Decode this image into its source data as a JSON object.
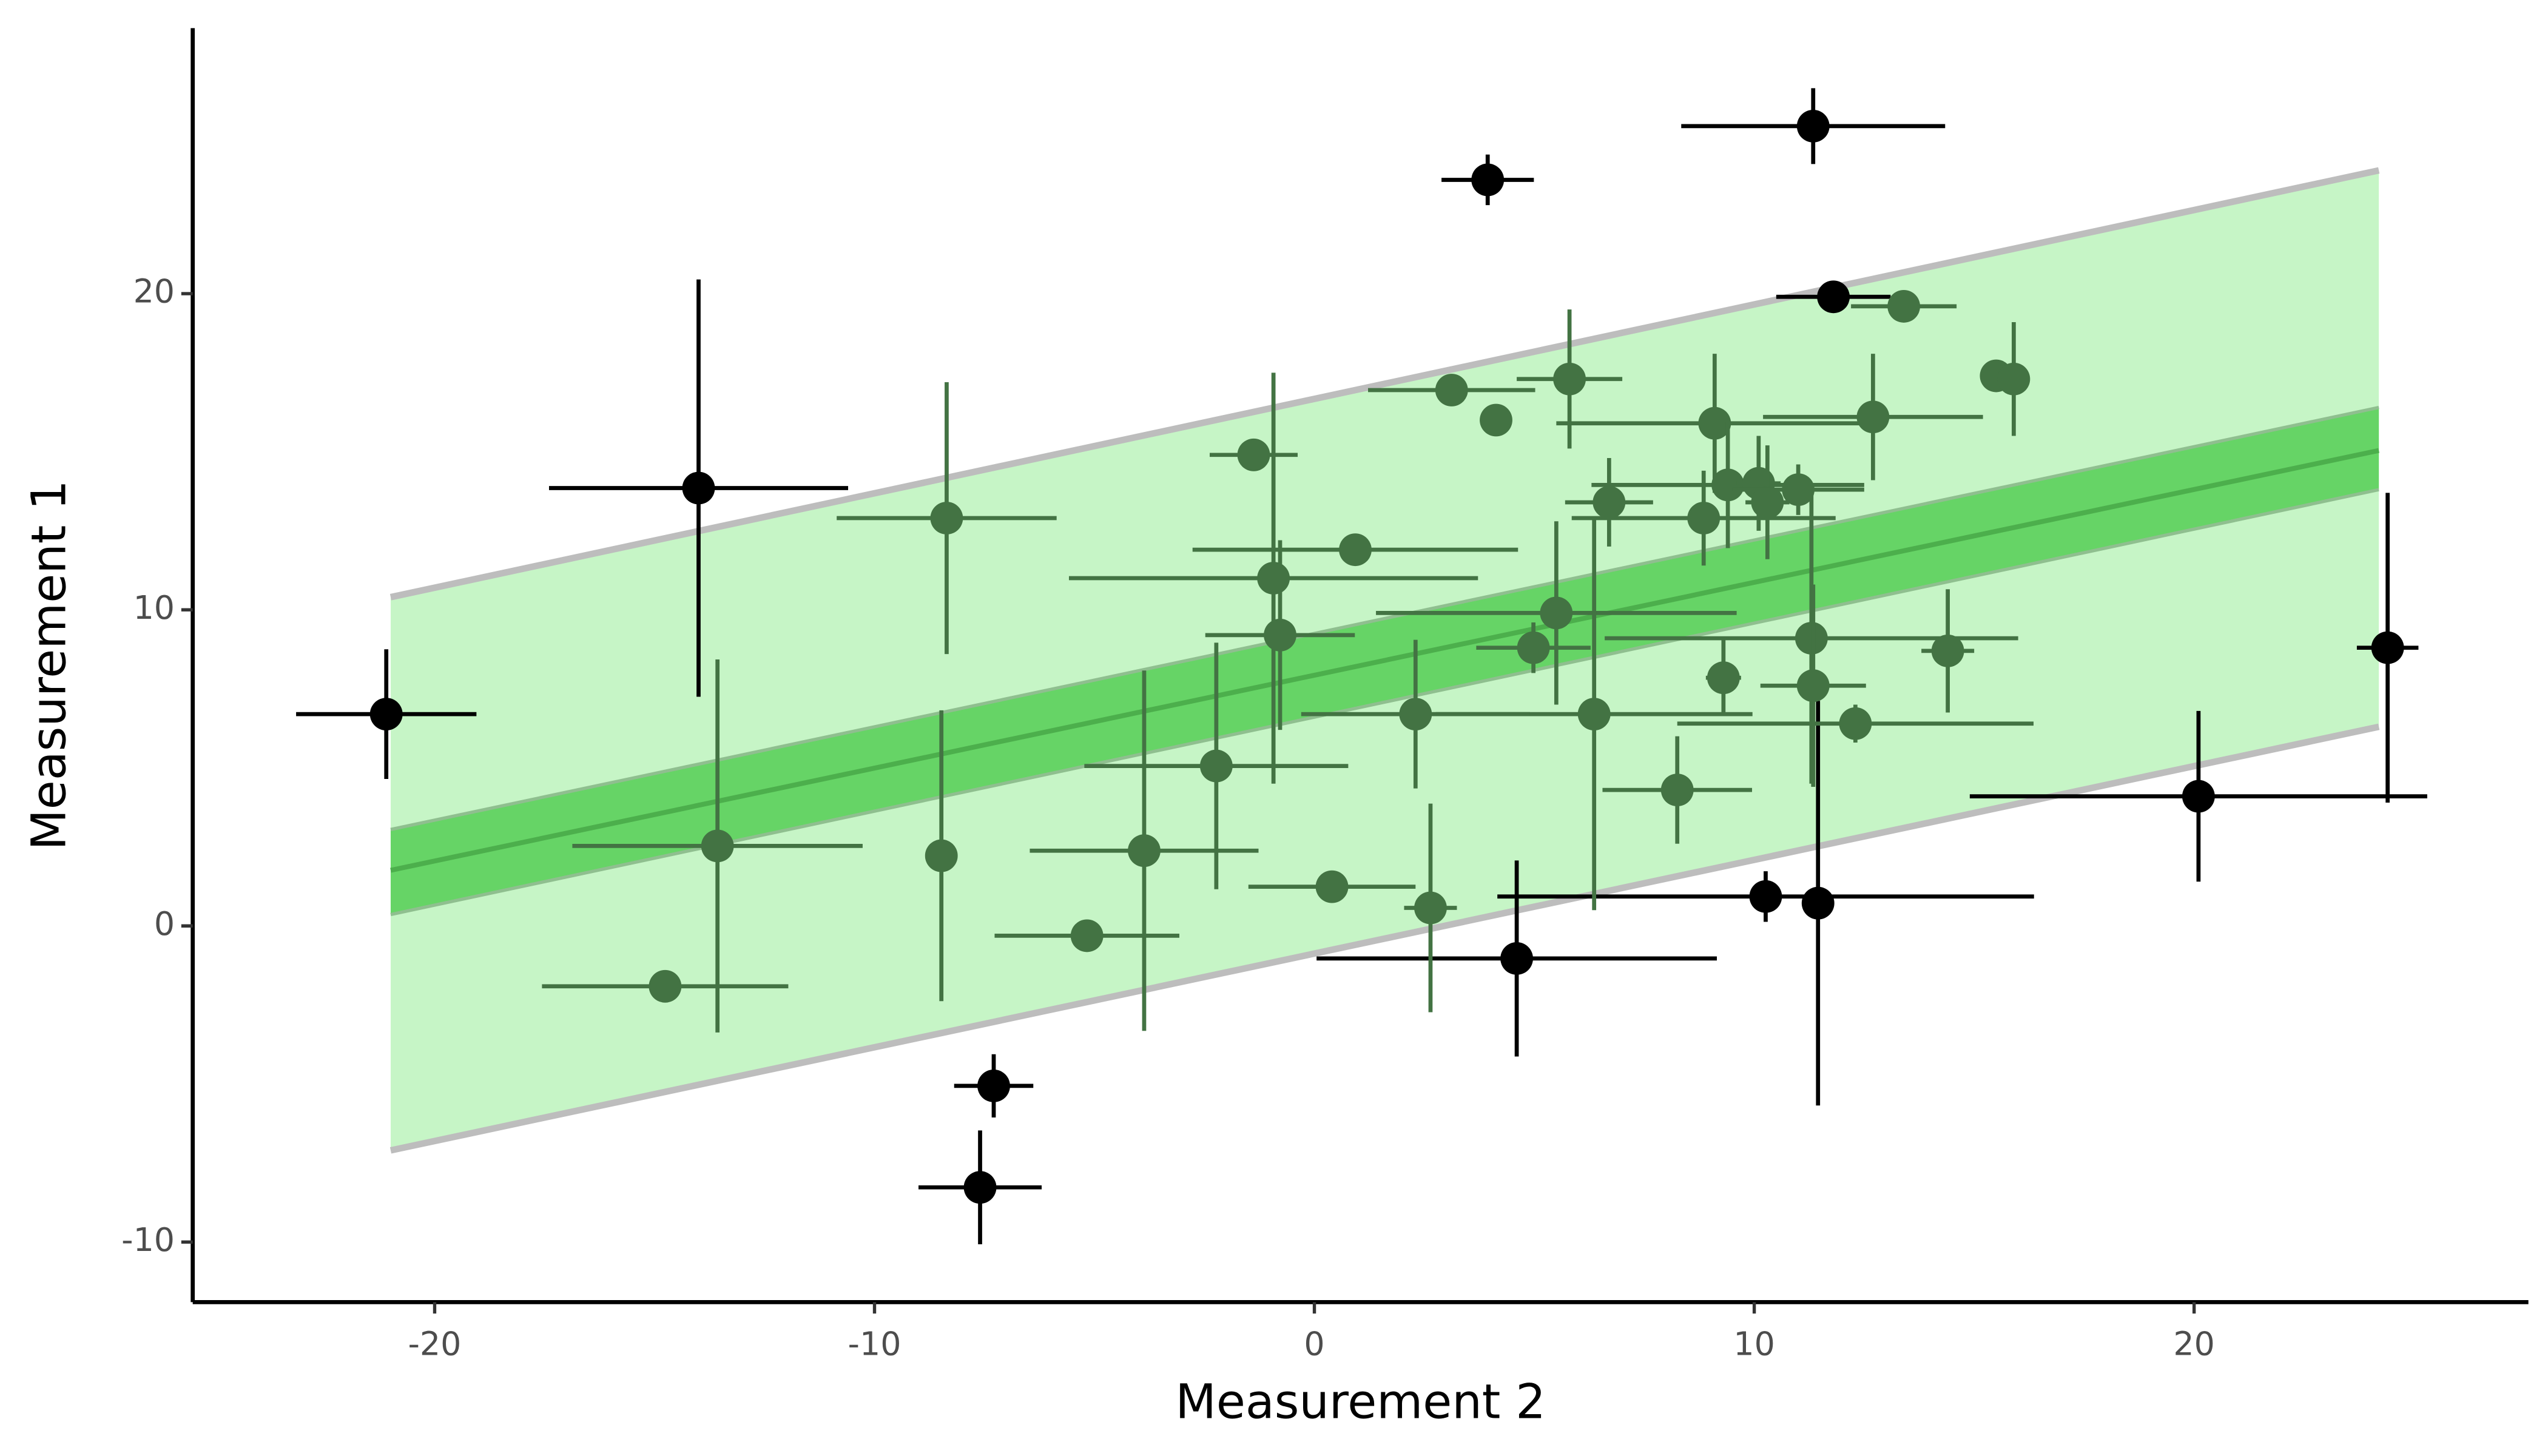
{
  "chart_data": {
    "type": "scatter",
    "x_label": "Measurement 2",
    "y_label": "Measurement 1",
    "xlim": [
      -25.5,
      27.6
    ],
    "ylim": [
      -11.9,
      28.4
    ],
    "xticks": [
      -20,
      -10,
      0,
      10,
      20
    ],
    "yticks": [
      -10,
      0,
      10,
      20
    ],
    "band": {
      "x": [
        -21,
        24.2
      ],
      "fit": [
        1.76,
        15.04
      ],
      "conf_lower": [
        0.36,
        13.8
      ],
      "conf_upper": [
        3.05,
        16.4
      ],
      "pred_lower": [
        -7.1,
        6.3
      ],
      "pred_upper": [
        10.4,
        23.9
      ],
      "pred_color": "#c6f5c6",
      "conf_color": "#66d466",
      "fit_color": "#4caf4c",
      "edge_color": "#bdbdbd"
    },
    "series": [
      {
        "color": "#000000",
        "x": [
          11.34,
          3.94,
          11.8,
          -14.0,
          -21.1,
          24.4,
          20.1,
          10.26,
          11.45,
          4.6,
          -7.29,
          -7.6
        ],
        "values": [
          25.3,
          23.6,
          19.9,
          13.85,
          6.7,
          8.8,
          4.1,
          0.93,
          0.72,
          -1.03,
          -5.06,
          -8.27
        ],
        "xerr": [
          3.0,
          1.05,
          1.3,
          3.4,
          2.05,
          0.7,
          5.2,
          6.1,
          0.3,
          4.55,
          0.9,
          1.4
        ],
        "yerr": [
          1.2,
          0.8,
          0.3,
          6.6,
          2.05,
          4.9,
          2.7,
          0.8,
          6.4,
          3.1,
          1.0,
          1.8
        ]
      },
      {
        "color": "#437343",
        "x": [
          3.12,
          4.13,
          5.8,
          13.4,
          15.5,
          15.9,
          12.7,
          9.1,
          6.7,
          9.4,
          10.1,
          10.3,
          11.0,
          8.85,
          -1.38,
          -8.36,
          0.93,
          -0.93,
          -0.78,
          5.5,
          4.98,
          11.3,
          14.4,
          9.3,
          11.34,
          12.3,
          6.36,
          2.3,
          -2.23,
          8.25,
          -3.87,
          -8.48,
          -13.57,
          0.4,
          2.64,
          -5.17,
          -14.76
        ],
        "values": [
          16.95,
          16.0,
          17.3,
          19.6,
          17.4,
          17.3,
          16.1,
          15.9,
          13.4,
          13.95,
          14.0,
          13.4,
          13.8,
          12.9,
          14.9,
          12.9,
          11.9,
          11.0,
          9.2,
          9.9,
          8.8,
          9.1,
          8.7,
          7.85,
          7.6,
          6.4,
          6.7,
          6.7,
          5.06,
          4.3,
          2.38,
          2.22,
          2.53,
          1.24,
          0.57,
          -0.31,
          -1.91
        ],
        "xerr": [
          1.9,
          0.3,
          1.2,
          1.2,
          0.3,
          0.3,
          2.5,
          3.6,
          1.0,
          3.1,
          0.5,
          0.5,
          1.5,
          3.0,
          1.0,
          2.5,
          3.7,
          4.65,
          1.7,
          4.1,
          1.3,
          4.7,
          0.6,
          0.4,
          1.2,
          4.05,
          3.6,
          2.6,
          3.0,
          1.7,
          2.6,
          0.3,
          3.3,
          1.9,
          0.6,
          2.1,
          2.8
        ],
        "yerr": [
          0.3,
          0.3,
          2.2,
          0.3,
          0.3,
          1.8,
          2.0,
          2.2,
          1.4,
          2.0,
          1.5,
          1.8,
          0.8,
          1.5,
          0.5,
          4.3,
          0.4,
          6.5,
          3.0,
          2.9,
          0.8,
          4.6,
          1.95,
          1.2,
          3.2,
          0.6,
          6.2,
          2.35,
          3.9,
          1.7,
          5.7,
          4.6,
          5.9,
          0.4,
          3.3,
          0.4,
          0.4
        ]
      }
    ]
  }
}
